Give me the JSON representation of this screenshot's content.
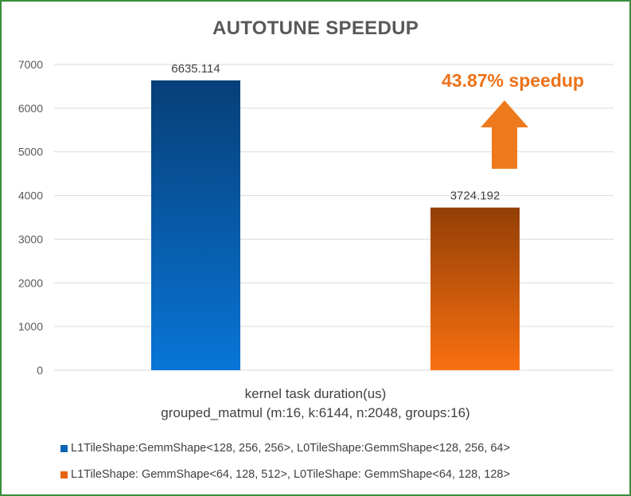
{
  "chart_data": {
    "type": "bar",
    "title": "AUTOTUNE SPEEDUP",
    "xlabel_lines": [
      "kernel task duration(us)",
      "grouped_matmul  (m:16, k:6144, n:2048, groups:16)"
    ],
    "ylim": [
      0,
      7000
    ],
    "yticks": [
      0,
      1000,
      2000,
      3000,
      4000,
      5000,
      6000,
      7000
    ],
    "grid": true,
    "legend_position": "bottom",
    "series": [
      {
        "name": "L1TileShape:GemmShape<128, 256, 256>, L0TileShape:GemmShape<128, 256, 64>",
        "values": [
          6635.114
        ],
        "data_label": "6635.114",
        "color": "#0a64b4"
      },
      {
        "name": "L1TileShape: GemmShape<64, 128, 512>, L0TileShape: GemmShape<64, 128, 128>",
        "values": [
          3724.192
        ],
        "data_label": "3724.192",
        "color": "#e8650e"
      }
    ],
    "annotation": {
      "text": "43.87% speedup",
      "color": "#ed7218"
    }
  }
}
